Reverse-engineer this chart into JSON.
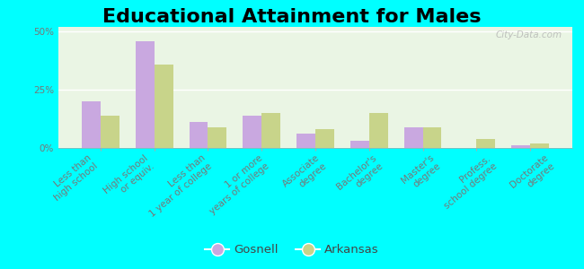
{
  "title": "Educational Attainment for Males",
  "categories": [
    "Less than\nhigh school",
    "High school\nor equiv.",
    "Less than\n1 year of college",
    "1 or more\nyears of college",
    "Associate\ndegree",
    "Bachelor's\ndegree",
    "Master's\ndegree",
    "Profess.\nschool degree",
    "Doctorate\ndegree"
  ],
  "gosnell": [
    20,
    46,
    11,
    14,
    6,
    3,
    9,
    0,
    1
  ],
  "arkansas": [
    14,
    36,
    9,
    15,
    8,
    15,
    9,
    4,
    2
  ],
  "gosnell_color": "#c9a8e0",
  "arkansas_color": "#c8d48a",
  "background_color": "#00ffff",
  "plot_bg": "#eaf5e4",
  "ylim": [
    0,
    52
  ],
  "yticks": [
    0,
    25,
    50
  ],
  "ytick_labels": [
    "0%",
    "25%",
    "50%"
  ],
  "watermark": "City-Data.com",
  "legend_labels": [
    "Gosnell",
    "Arkansas"
  ],
  "bar_width": 0.35,
  "title_fontsize": 16,
  "tick_fontsize": 7.5,
  "label_color": "#777777"
}
